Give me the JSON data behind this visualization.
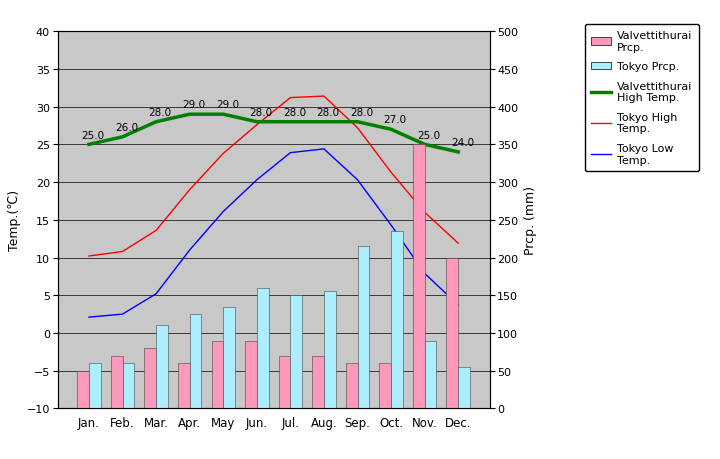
{
  "months": [
    "Jan.",
    "Feb.",
    "Mar.",
    "Apr.",
    "May",
    "Jun.",
    "Jul.",
    "Aug.",
    "Sep.",
    "Oct.",
    "Nov.",
    "Dec."
  ],
  "valvet_high_temp": [
    25.0,
    26.0,
    28.0,
    29.0,
    29.0,
    28.0,
    28.0,
    28.0,
    28.0,
    27.0,
    25.0,
    24.0
  ],
  "tokyo_high_temp": [
    10.2,
    10.8,
    13.6,
    19.0,
    23.8,
    27.6,
    31.2,
    31.4,
    27.2,
    21.3,
    16.0,
    11.9
  ],
  "tokyo_low_temp": [
    2.1,
    2.5,
    5.2,
    11.0,
    16.1,
    20.3,
    23.9,
    24.4,
    20.3,
    14.3,
    7.9,
    3.7
  ],
  "valvet_prcp": [
    50,
    70,
    80,
    60,
    90,
    90,
    70,
    70,
    60,
    60,
    350,
    200
  ],
  "tokyo_prcp": [
    60,
    60,
    110,
    125,
    135,
    160,
    150,
    155,
    215,
    235,
    90,
    55
  ],
  "valvet_prcp_color": "#FF99BB",
  "tokyo_prcp_color": "#AAEEFF",
  "valvet_high_color": "#008000",
  "tokyo_high_color": "#FF0000",
  "tokyo_low_color": "#0000FF",
  "temp_ylim": [
    -10,
    40
  ],
  "prcp_ylim": [
    0,
    500
  ],
  "bg_color": "#C8C8C8",
  "ylabel_left": "Temp.(℃)",
  "ylabel_right": "Prcp. (mm)",
  "legend_entries": [
    "Valvettithurai\nPrcp.",
    "Tokyo Prcp.",
    "Valvettithurai\nHigh Temp.",
    "Tokyo High\nTemp.",
    "Tokyo Low\nTemp."
  ]
}
